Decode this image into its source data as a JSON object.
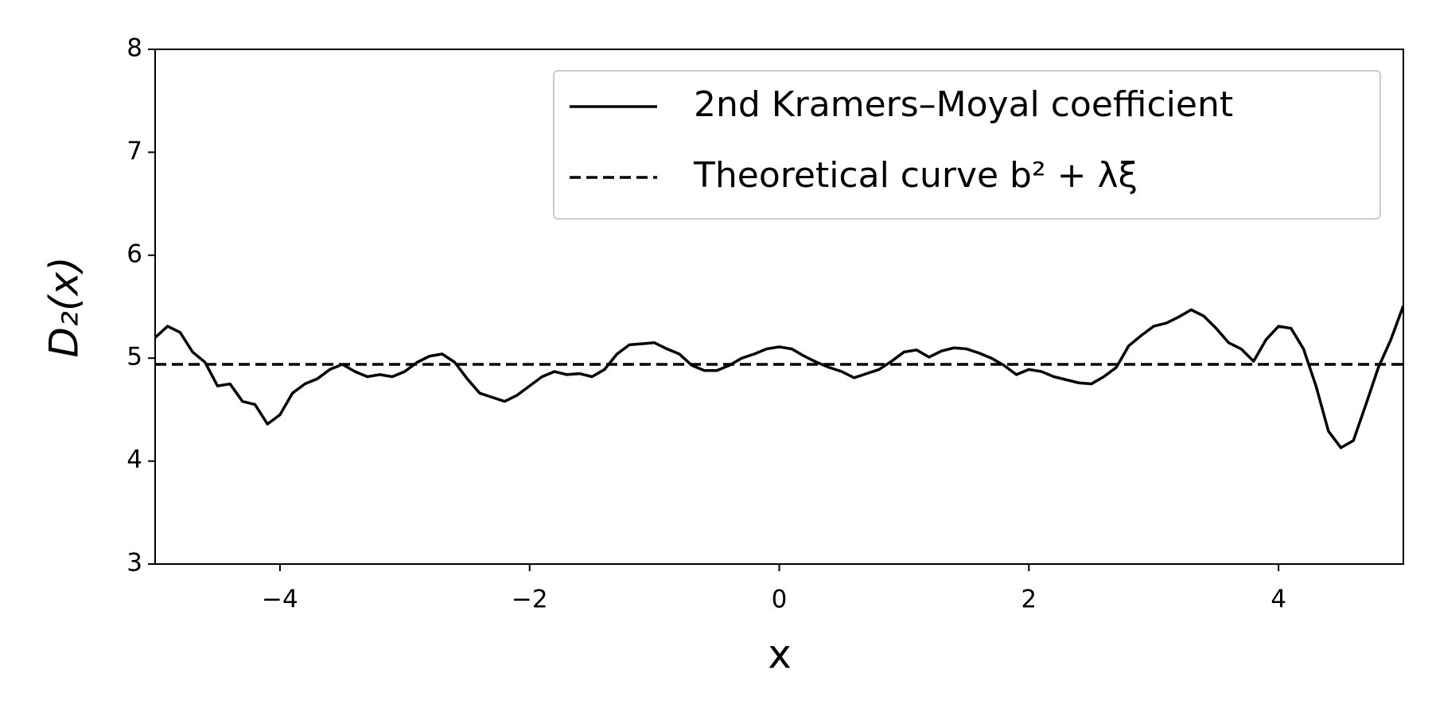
{
  "chart_data": {
    "type": "line",
    "xlabel": "x",
    "ylabel": "D₂(x)",
    "xlim": [
      -5,
      5
    ],
    "ylim": [
      3,
      8
    ],
    "xticks": [
      {
        "value": -4,
        "label": "−4"
      },
      {
        "value": -2,
        "label": "−2"
      },
      0,
      2,
      4
    ],
    "yticks": [
      3,
      4,
      5,
      6,
      7,
      8
    ],
    "grid": false,
    "legend": "upper right",
    "series": [
      {
        "name": "2nd Kramers–Moyal coefficient",
        "color": "#000000",
        "linestyle": "solid",
        "x": [
          -5.0,
          -4.9,
          -4.8,
          -4.7,
          -4.6,
          -4.5,
          -4.4,
          -4.3,
          -4.2,
          -4.1,
          -4.0,
          -3.9,
          -3.8,
          -3.7,
          -3.6,
          -3.5,
          -3.4,
          -3.3,
          -3.2,
          -3.1,
          -3.0,
          -2.9,
          -2.8,
          -2.7,
          -2.6,
          -2.5,
          -2.4,
          -2.3,
          -2.2,
          -2.1,
          -2.0,
          -1.9,
          -1.8,
          -1.7,
          -1.6,
          -1.5,
          -1.4,
          -1.3,
          -1.2,
          -1.1,
          -1.0,
          -0.9,
          -0.8,
          -0.7,
          -0.6,
          -0.5,
          -0.4,
          -0.3,
          -0.2,
          -0.1,
          0.0,
          0.1,
          0.2,
          0.3,
          0.4,
          0.5,
          0.6,
          0.7,
          0.8,
          0.9,
          1.0,
          1.1,
          1.2,
          1.3,
          1.4,
          1.5,
          1.6,
          1.7,
          1.8,
          1.9,
          2.0,
          2.1,
          2.2,
          2.3,
          2.4,
          2.5,
          2.6,
          2.7,
          2.8,
          2.9,
          3.0,
          3.1,
          3.2,
          3.3,
          3.4,
          3.5,
          3.6,
          3.7,
          3.8,
          3.9,
          4.0,
          4.1,
          4.2,
          4.3,
          4.4,
          4.5,
          4.6,
          4.7,
          4.8,
          4.9,
          5.0
        ],
        "values": [
          5.2,
          5.31,
          5.25,
          5.06,
          4.96,
          4.73,
          4.75,
          4.58,
          4.55,
          4.36,
          4.45,
          4.66,
          4.75,
          4.8,
          4.89,
          4.94,
          4.87,
          4.82,
          4.84,
          4.82,
          4.87,
          4.96,
          5.02,
          5.04,
          4.96,
          4.8,
          4.66,
          4.62,
          4.58,
          4.64,
          4.73,
          4.82,
          4.87,
          4.84,
          4.85,
          4.82,
          4.89,
          5.04,
          5.13,
          5.14,
          5.15,
          5.09,
          5.04,
          4.93,
          4.88,
          4.88,
          4.93,
          5.0,
          5.04,
          5.09,
          5.11,
          5.09,
          5.02,
          4.96,
          4.91,
          4.87,
          4.81,
          4.85,
          4.89,
          4.97,
          5.06,
          5.08,
          5.01,
          5.07,
          5.1,
          5.09,
          5.05,
          5.0,
          4.93,
          4.84,
          4.89,
          4.87,
          4.82,
          4.79,
          4.76,
          4.75,
          4.82,
          4.91,
          5.12,
          5.22,
          5.31,
          5.34,
          5.4,
          5.47,
          5.41,
          5.29,
          5.15,
          5.09,
          4.97,
          5.18,
          5.31,
          5.29,
          5.09,
          4.73,
          4.29,
          4.13,
          4.2,
          4.55,
          4.91,
          5.18,
          5.51
        ]
      },
      {
        "name": "Theoretical curve b² + λξ",
        "color": "#000000",
        "linestyle": "dashed",
        "x": [
          -5,
          5
        ],
        "values": [
          4.94,
          4.94
        ]
      }
    ]
  }
}
